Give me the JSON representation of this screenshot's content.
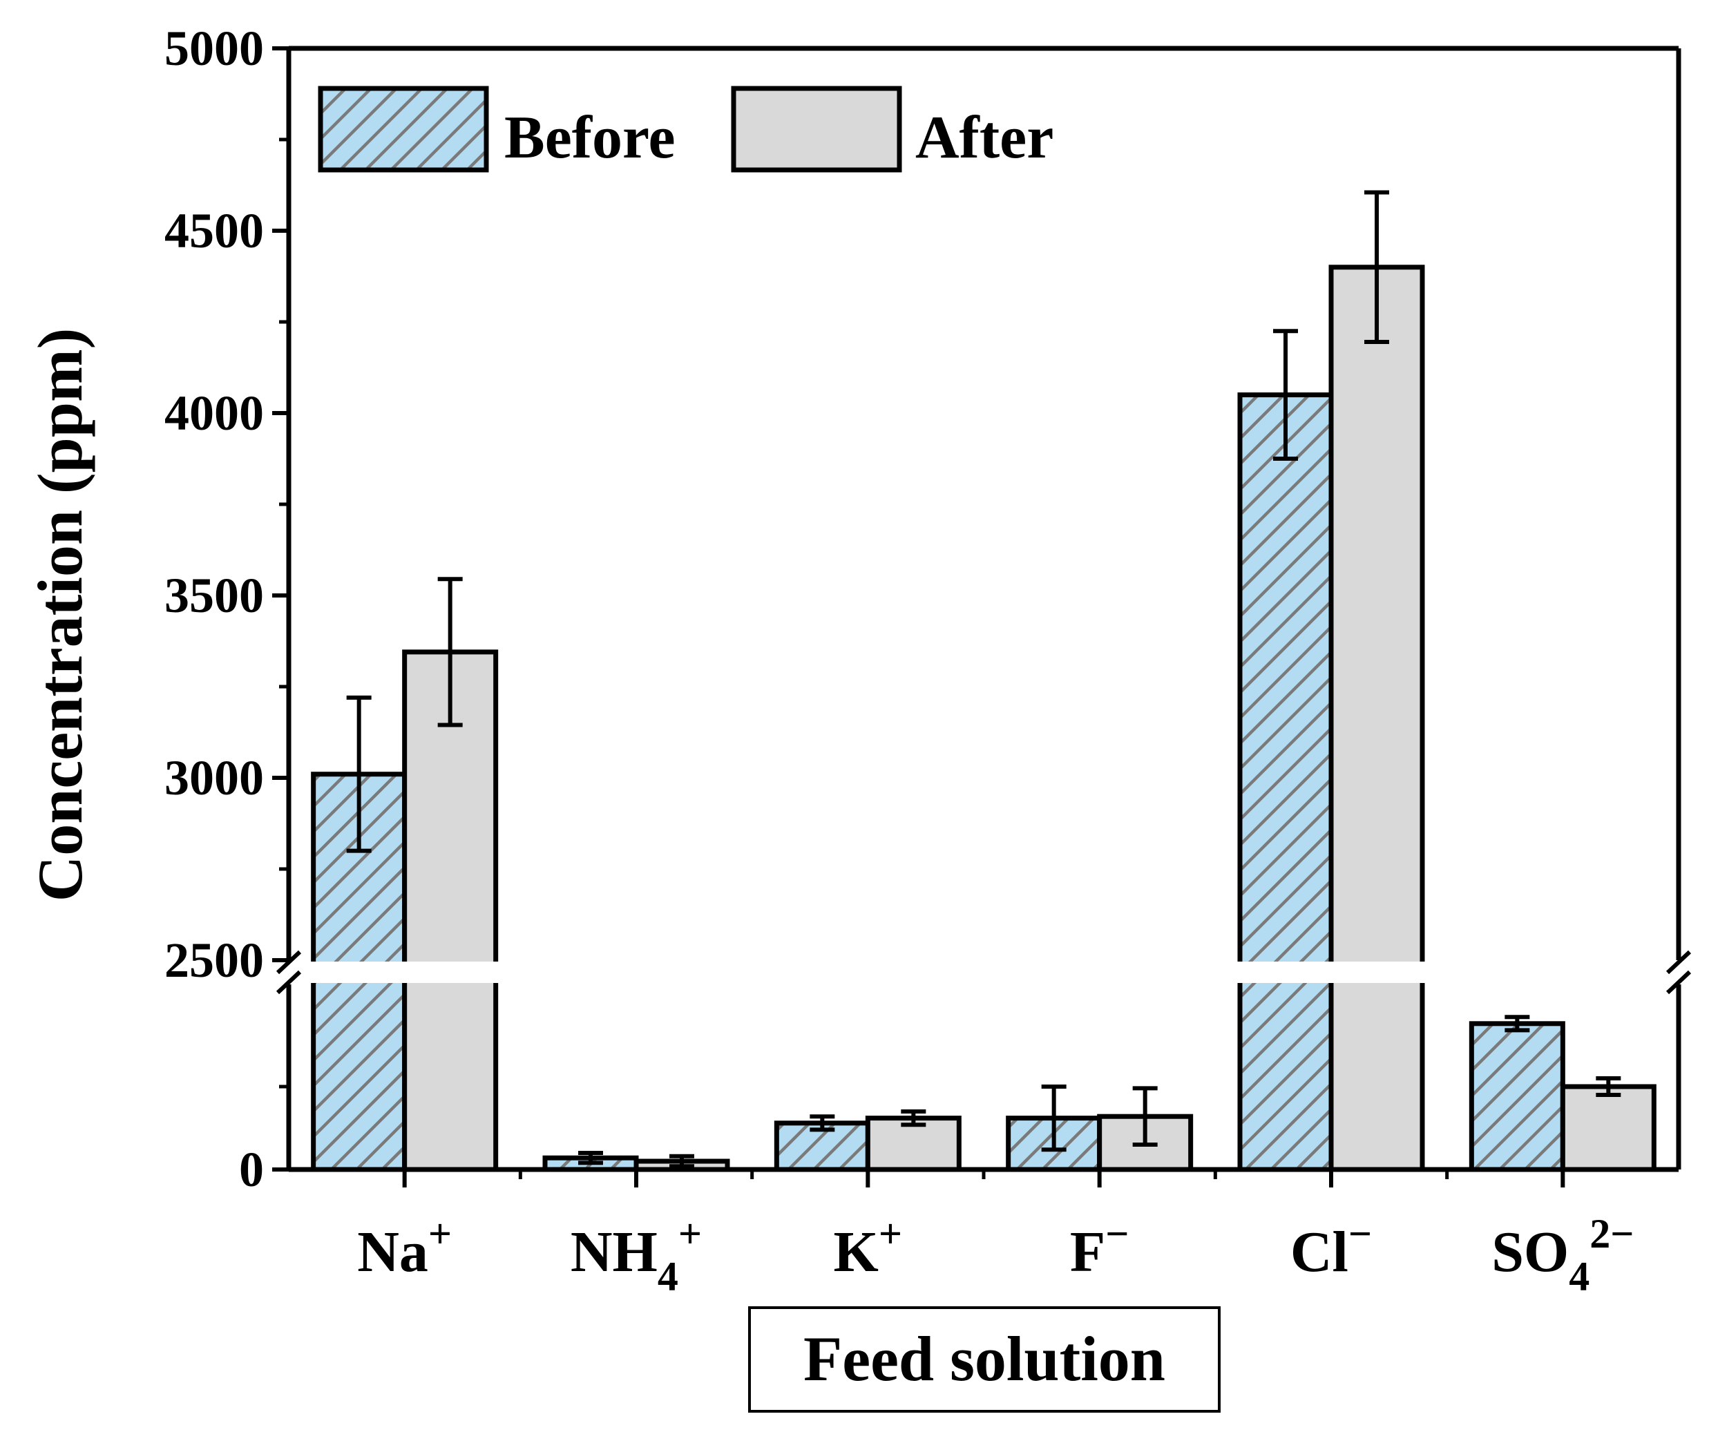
{
  "chart_data": {
    "type": "bar",
    "title": "",
    "xlabel": "Feed solution",
    "ylabel": "Concentration (ppm)",
    "categories": [
      {
        "base": "Na",
        "sub": "",
        "sup": "+"
      },
      {
        "base": "NH",
        "sub": "4",
        "sup": "+"
      },
      {
        "base": "K",
        "sub": "",
        "sup": "+"
      },
      {
        "base": "F",
        "sub": "",
        "sup": "−"
      },
      {
        "base": "Cl",
        "sub": "",
        "sup": "−"
      },
      {
        "base": "SO",
        "sub": "4",
        "sup": "2−"
      }
    ],
    "series": [
      {
        "name": "Before",
        "values": [
          3010,
          35,
          140,
          155,
          4050,
          440
        ],
        "errors": [
          210,
          15,
          20,
          95,
          175,
          20
        ],
        "color": "#b3dcf2",
        "hatch": "#7a7a7a"
      },
      {
        "name": "After",
        "values": [
          3345,
          25,
          155,
          160,
          4400,
          250
        ],
        "errors": [
          200,
          15,
          20,
          85,
          205,
          25
        ],
        "color": "#d9d9d9"
      }
    ],
    "ylim": [
      0,
      5000
    ],
    "axis_break": {
      "lower_range": [
        0,
        500
      ],
      "upper_range": [
        2500,
        5000
      ],
      "visible_label": "2500"
    },
    "yticks": [
      "0",
      "2500",
      "3000",
      "3500",
      "4000",
      "4500",
      "5000"
    ],
    "legend": {
      "position": "top-left",
      "entries": [
        "Before",
        "After"
      ]
    },
    "grid": false
  }
}
